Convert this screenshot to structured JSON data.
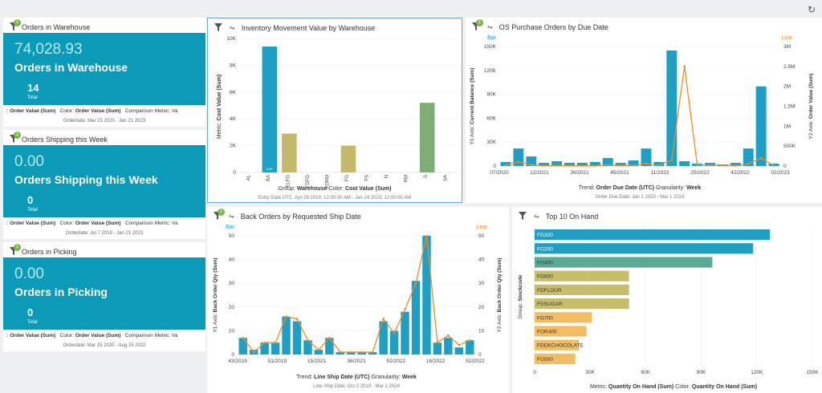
{
  "refresh_icon": "refresh-icon",
  "kpis": [
    {
      "title": "Orders in Warehouse",
      "value": "74,028.93",
      "label": "Orders in Warehouse",
      "count": "14",
      "total_label": "Total",
      "metric": "Order Value (Sum)",
      "color": "Order Value (Sum)",
      "comparison": "Comparison Metric: Va",
      "date": "Orderdate: Mar 15 2020 - Jan 21 2023"
    },
    {
      "title": "Orders Shipping this Week",
      "value": "0.00",
      "label": "Orders Shipping this Week",
      "count": "0",
      "total_label": "Total",
      "metric": "Order Value (Sum)",
      "color": "Order Value (Sum)",
      "comparison": "Comparison Metric: Va",
      "date": "Orderdate: Jul 7 2019 - Jan 21 2023"
    },
    {
      "title": "Orders in Picking",
      "value": "0.00",
      "label": "Orders in Picking",
      "count": "0",
      "total_label": "Total",
      "metric": "Order Value (Sum)",
      "color": "Order Value (Sum)",
      "comparison": "Comparison Metric: Va",
      "date": "Orderdate: Mar 15 2020 - Aug 15 2022"
    }
  ],
  "inv": {
    "title": "Inventory Movement Value by Warehouse",
    "group_label": "Group:",
    "group_value": "Warehouse",
    "color_label": "Color:",
    "color_value": "Cost Value (Sum)",
    "date": "Entry Date UTC: Apr 28 2019, 12:00:00 AM - Jan 24 2023, 12:00:00 AM",
    "ylabel_pre": "Metric:",
    "ylabel": "Cost Value (Sum)",
    "bar_label": "9.4K"
  },
  "po": {
    "title": "OS Purchase Orders by Due Date",
    "bar_label": "Bar",
    "line_label": "Line",
    "y1_pre": "Y1 Axis:",
    "y1": "Current Balance (Sum)",
    "y2_pre": "Y2 Axis:",
    "y2": "Order Value (Sum)",
    "trend_label": "Trend:",
    "trend_value": "Order Due Date (UTC)",
    "gran_label": "Granularity:",
    "gran_value": "Week",
    "date": "Order Due Date: Jan 1 2020 - Mar 1 2024"
  },
  "bo": {
    "title": "Back Orders by Requested Ship Date",
    "bar_label": "Bar",
    "line_label": "Line",
    "y1_pre": "Y1 Axis:",
    "y1": "Back Order Qty (Sum)",
    "y2_pre": "Y2 Axis:",
    "y2": "Back Order Qty (Sum)",
    "trend_label": "Trend:",
    "trend_value": "Line Ship Date (UTC)",
    "gran_label": "Granularity:",
    "gran_value": "Week",
    "date": "Line Ship Date: Oct 2 2019 - Mar 1 2024"
  },
  "top": {
    "title": "Top 10 On Hand",
    "metric_label": "Metric:",
    "metric_value": "Quantity On Hand (Sum)",
    "color_label": "Color:",
    "color_value": "Quantity On Hand (Sum)",
    "ylabel_pre": "Group:",
    "ylabel": "Stockcode"
  },
  "chart_data": [
    {
      "type": "bar",
      "title": "Inventory Movement Value by Warehouse",
      "categories": [
        "AL",
        "BA",
        "ELFG",
        "FDFG",
        "FDRM",
        "FG",
        "FS",
        "N",
        "RM",
        "S",
        "SA"
      ],
      "values": [
        0,
        9400,
        2900,
        0,
        0,
        2000,
        0,
        0,
        0,
        5200,
        0
      ],
      "colors": [
        "#1f9fc4",
        "#1f9fc4",
        "#c4b86a",
        "#c4b86a",
        "#c4b86a",
        "#c4b86a",
        "#c4b86a",
        "#c4b86a",
        "#c4b86a",
        "#7fae74",
        "#7fae74"
      ],
      "ylim": [
        0,
        10000
      ],
      "yticks": [
        "0",
        "2K",
        "4K",
        "6K",
        "8K",
        "10K"
      ],
      "xlabel": "Warehouse",
      "ylabel": "Cost Value (Sum)"
    },
    {
      "type": "bar+line",
      "title": "OS Purchase Orders by Due Date",
      "xticks": [
        "07/2020",
        "12/2021",
        "36/2021",
        "45/2021",
        "11/2022",
        "25/2022",
        "42/2022",
        "02/2023"
      ],
      "bars": [
        5000,
        22000,
        12000,
        4000,
        6000,
        4000,
        4000,
        5000,
        10000,
        4000,
        7000,
        22000,
        5000,
        145000,
        6000,
        3000,
        4000,
        2000,
        4000,
        22000,
        100000,
        3000
      ],
      "line": [
        20000,
        100000,
        30000,
        10000,
        10000,
        5000,
        8000,
        5000,
        30000,
        10000,
        20000,
        60000,
        10000,
        150000,
        2500000,
        30000,
        20000,
        20000,
        10000,
        50000,
        200000,
        10000
      ],
      "y1lim": [
        0,
        150000
      ],
      "y1ticks": [
        "0",
        "30K",
        "60K",
        "90K",
        "120K",
        "150K"
      ],
      "y2lim": [
        0,
        3000000
      ],
      "y2ticks": [
        "0",
        "500K",
        "1M",
        "1.5M",
        "2M",
        "2.5M",
        "3M"
      ]
    },
    {
      "type": "bar+line",
      "title": "Back Orders by Requested Ship Date",
      "xticks": [
        "43/2019",
        "51/2019",
        "15/2021",
        "36/2021",
        "02/2022",
        "16/2022",
        "52/2022"
      ],
      "bars": [
        7,
        2,
        5,
        5,
        16,
        14,
        6,
        2,
        7,
        1,
        1,
        1,
        1,
        14,
        10,
        18,
        31,
        50,
        5,
        7,
        3,
        6
      ],
      "line": [
        7,
        1,
        5,
        5,
        16,
        15,
        6,
        2,
        7,
        1,
        1,
        1,
        1,
        15,
        9,
        19,
        30,
        50,
        5,
        8,
        4,
        6
      ],
      "ylim": [
        0,
        50
      ],
      "yticks": [
        "0",
        "10",
        "20",
        "30",
        "40",
        "50"
      ]
    },
    {
      "type": "hbar",
      "title": "Top 10 On Hand",
      "categories": [
        "FG300",
        "FG200",
        "FG400",
        "FG600",
        "FDFLOUR",
        "FDSUGAR",
        "FG700",
        "FOR400",
        "FDDKCHOCOLATE",
        "FG500"
      ],
      "values": [
        127000,
        118000,
        96000,
        51000,
        51000,
        51000,
        31000,
        28000,
        24000,
        22000
      ],
      "colors": [
        "#1f9fc4",
        "#1f9fc4",
        "#5aab95",
        "#c8bd6a",
        "#c8bd6a",
        "#c8bd6a",
        "#f2be63",
        "#f2be63",
        "#f2be63",
        "#f2be63"
      ],
      "xlim": [
        0,
        150000
      ],
      "xticks": [
        "0",
        "30K",
        "60K",
        "90K",
        "120K",
        "150K"
      ]
    }
  ]
}
